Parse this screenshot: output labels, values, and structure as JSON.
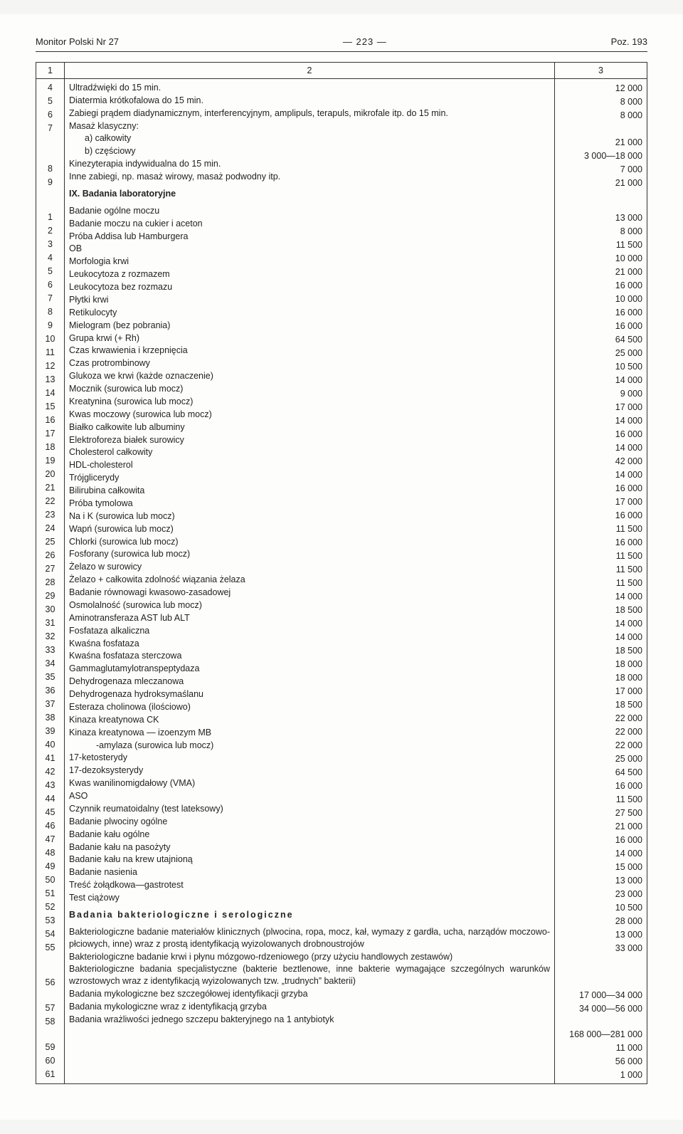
{
  "header": {
    "left": "Monitor Polski Nr 27",
    "center": "—   223   —",
    "right": "Poz. 193"
  },
  "columns": {
    "c1": "1",
    "c2": "2",
    "c3": "3"
  },
  "section_a": {
    "rows": [
      {
        "n": "4",
        "t": "Ultradźwięki do 15 min.",
        "v": "12 000"
      },
      {
        "n": "5",
        "t": "Diatermia krótkofalowa do 15 min.",
        "v": "8 000"
      },
      {
        "n": "6",
        "t": "Zabiegi prądem diadynamicznym, interferencyjnym, amplipuls, terapuls, mikrofale itp. do 15 min.",
        "v": "8 000"
      },
      {
        "n": "7",
        "t": "Masaż klasyczny:",
        "v": ""
      },
      {
        "n": "",
        "t": "a) całkowity",
        "v": "21 000",
        "indent": true
      },
      {
        "n": "",
        "t": "b) częściowy",
        "v": "3 000—18 000",
        "indent": true
      },
      {
        "n": "8",
        "t": "Kinezyterapia indywidualna do 15 min.",
        "v": "7 000"
      },
      {
        "n": "9",
        "t": "Inne zabiegi, np. masaż wirowy, masaż podwodny itp.",
        "v": "21 000"
      }
    ]
  },
  "section_ix": {
    "title": "IX. Badania laboratoryjne",
    "rows": [
      {
        "n": "1",
        "t": "Badanie ogólne moczu",
        "v": "13 000"
      },
      {
        "n": "2",
        "t": "Badanie moczu na cukier i aceton",
        "v": "8 000"
      },
      {
        "n": "3",
        "t": "Próba Addisa lub Hamburgera",
        "v": "11 500"
      },
      {
        "n": "4",
        "t": "OB",
        "v": "10 000"
      },
      {
        "n": "5",
        "t": "Morfologia krwi",
        "v": "21 000"
      },
      {
        "n": "6",
        "t": "Leukocytoza z rozmazem",
        "v": "16 000"
      },
      {
        "n": "7",
        "t": "Leukocytoza bez rozmazu",
        "v": "10 000"
      },
      {
        "n": "8",
        "t": "Płytki krwi",
        "v": "16 000"
      },
      {
        "n": "9",
        "t": "Retikulocyty",
        "v": "16 000"
      },
      {
        "n": "10",
        "t": "Mielogram (bez pobrania)",
        "v": "64 500"
      },
      {
        "n": "11",
        "t": "Grupa krwi (+ Rh)",
        "v": "25 000"
      },
      {
        "n": "12",
        "t": "Czas krwawienia i krzepnięcia",
        "v": "10 500"
      },
      {
        "n": "13",
        "t": "Czas protrombinowy",
        "v": "14 000"
      },
      {
        "n": "14",
        "t": "Glukoza we krwi (każde oznaczenie)",
        "v": "9 000"
      },
      {
        "n": "15",
        "t": "Mocznik (surowica lub mocz)",
        "v": "17 000"
      },
      {
        "n": "16",
        "t": "Kreatynina (surowica lub mocz)",
        "v": "14 000"
      },
      {
        "n": "17",
        "t": "Kwas moczowy (surowica lub mocz)",
        "v": "16 000"
      },
      {
        "n": "18",
        "t": "Białko całkowite lub albuminy",
        "v": "14 000"
      },
      {
        "n": "19",
        "t": "Elektroforeza białek surowicy",
        "v": "42 000"
      },
      {
        "n": "20",
        "t": "Cholesterol całkowity",
        "v": "14 000"
      },
      {
        "n": "21",
        "t": "HDL-cholesterol",
        "v": "16 000"
      },
      {
        "n": "22",
        "t": "Trójglicerydy",
        "v": "17 000"
      },
      {
        "n": "23",
        "t": "Bilirubina całkowita",
        "v": "16 000"
      },
      {
        "n": "24",
        "t": "Próba tymolowa",
        "v": "11 500"
      },
      {
        "n": "25",
        "t": "Na i K (surowica lub mocz)",
        "v": "16 000"
      },
      {
        "n": "26",
        "t": "Wapń (surowica lub mocz)",
        "v": "11 500"
      },
      {
        "n": "27",
        "t": "Chlorki (surowica lub mocz)",
        "v": "11 500"
      },
      {
        "n": "28",
        "t": "Fosforany (surowica lub mocz)",
        "v": "11 500"
      },
      {
        "n": "29",
        "t": "Żelazo w surowicy",
        "v": "14 000"
      },
      {
        "n": "30",
        "t": "Żelazo + całkowita zdolność wiązania żelaza",
        "v": "18 500"
      },
      {
        "n": "31",
        "t": "Badanie równowagi kwasowo-zasadowej",
        "v": "14 000"
      },
      {
        "n": "32",
        "t": "Osmolalność (surowica lub mocz)",
        "v": "14 000"
      },
      {
        "n": "33",
        "t": "Aminotransferaza AST lub ALT",
        "v": "18 500"
      },
      {
        "n": "34",
        "t": "Fosfataza alkaliczna",
        "v": "18 000"
      },
      {
        "n": "35",
        "t": "Kwaśna fosfataza",
        "v": "18 000"
      },
      {
        "n": "36",
        "t": "Kwaśna fosfataza sterczowa",
        "v": "17 000"
      },
      {
        "n": "37",
        "t": "Gammaglutamylotranspeptydaza",
        "v": "18 500"
      },
      {
        "n": "38",
        "t": "Dehydrogenaza mleczanowa",
        "v": "22 000"
      },
      {
        "n": "39",
        "t": "Dehydrogenaza hydroksymaślanu",
        "v": "22 000"
      },
      {
        "n": "40",
        "t": "Esteraza cholinowa (ilościowo)",
        "v": "22 000"
      },
      {
        "n": "41",
        "t": "Kinaza kreatynowa CK",
        "v": "25 000"
      },
      {
        "n": "42",
        "t": "Kinaza kreatynowa — izoenzym MB",
        "v": "64 500"
      },
      {
        "n": "43",
        "t": "-amylaza (surowica lub mocz)",
        "v": "16 000",
        "extra": true
      },
      {
        "n": "44",
        "t": "17-ketosterydy",
        "v": "11 500"
      },
      {
        "n": "45",
        "t": "17-dezoksysterydy",
        "v": "27 500"
      },
      {
        "n": "46",
        "t": "Kwas wanilinomigdałowy (VMA)",
        "v": "21 000"
      },
      {
        "n": "47",
        "t": "ASO",
        "v": "16 000"
      },
      {
        "n": "48",
        "t": "Czynnik reumatoidalny (test lateksowy)",
        "v": "14 000"
      },
      {
        "n": "49",
        "t": "Badanie plwociny ogólne",
        "v": "15 000"
      },
      {
        "n": "50",
        "t": "Badanie kału ogólne",
        "v": "13 000"
      },
      {
        "n": "51",
        "t": "Badanie kału na pasożyty",
        "v": "23 000"
      },
      {
        "n": "52",
        "t": "Badanie kału na krew utajnioną",
        "v": "10 500"
      },
      {
        "n": "53",
        "t": "Badanie nasienia",
        "v": "28 000"
      },
      {
        "n": "54",
        "t": "Treść żołądkowa—gastrotest",
        "v": "13 000"
      },
      {
        "n": "55",
        "t": "Test ciążowy",
        "v": "33 000"
      }
    ]
  },
  "section_bakt": {
    "title": "Badania bakteriologiczne i serologiczne",
    "rows": [
      {
        "n": "56",
        "t": "Bakteriologiczne badanie materiałów klinicznych (plwocina, ropa, mocz, kał, wymazy z gardła, ucha, narządów moczowo-płciowych, inne) wraz z prostą identyfikacją wyizolowanych drobnoustrojów",
        "v": "17 000—34 000",
        "justify": true
      },
      {
        "n": "57",
        "t": "Bakteriologiczne badanie krwi i płynu mózgowo-rdzeniowego (przy użyciu handlowych zestawów)",
        "v": "34 000—56 000"
      },
      {
        "n": "58",
        "t": "Bakteriologiczne badania specjalistyczne (bakterie beztlenowe, inne bakterie wymagające szczególnych warunków wzrostowych wraz z identyfikacją wyizolowanych tzw. „trudnych” bakterii)",
        "v": "168 000—281 000",
        "justify": true
      },
      {
        "n": "59",
        "t": "Badania mykologiczne bez szczegółowej identyfikacji grzyba",
        "v": "11 000"
      },
      {
        "n": "60",
        "t": "Badania mykologiczne wraz z identyfikacją grzyba",
        "v": "56 000"
      },
      {
        "n": "61",
        "t": "Badania wrażliwości jednego szczepu bakteryjnego na 1 antybiotyk",
        "v": "1 000"
      }
    ]
  }
}
